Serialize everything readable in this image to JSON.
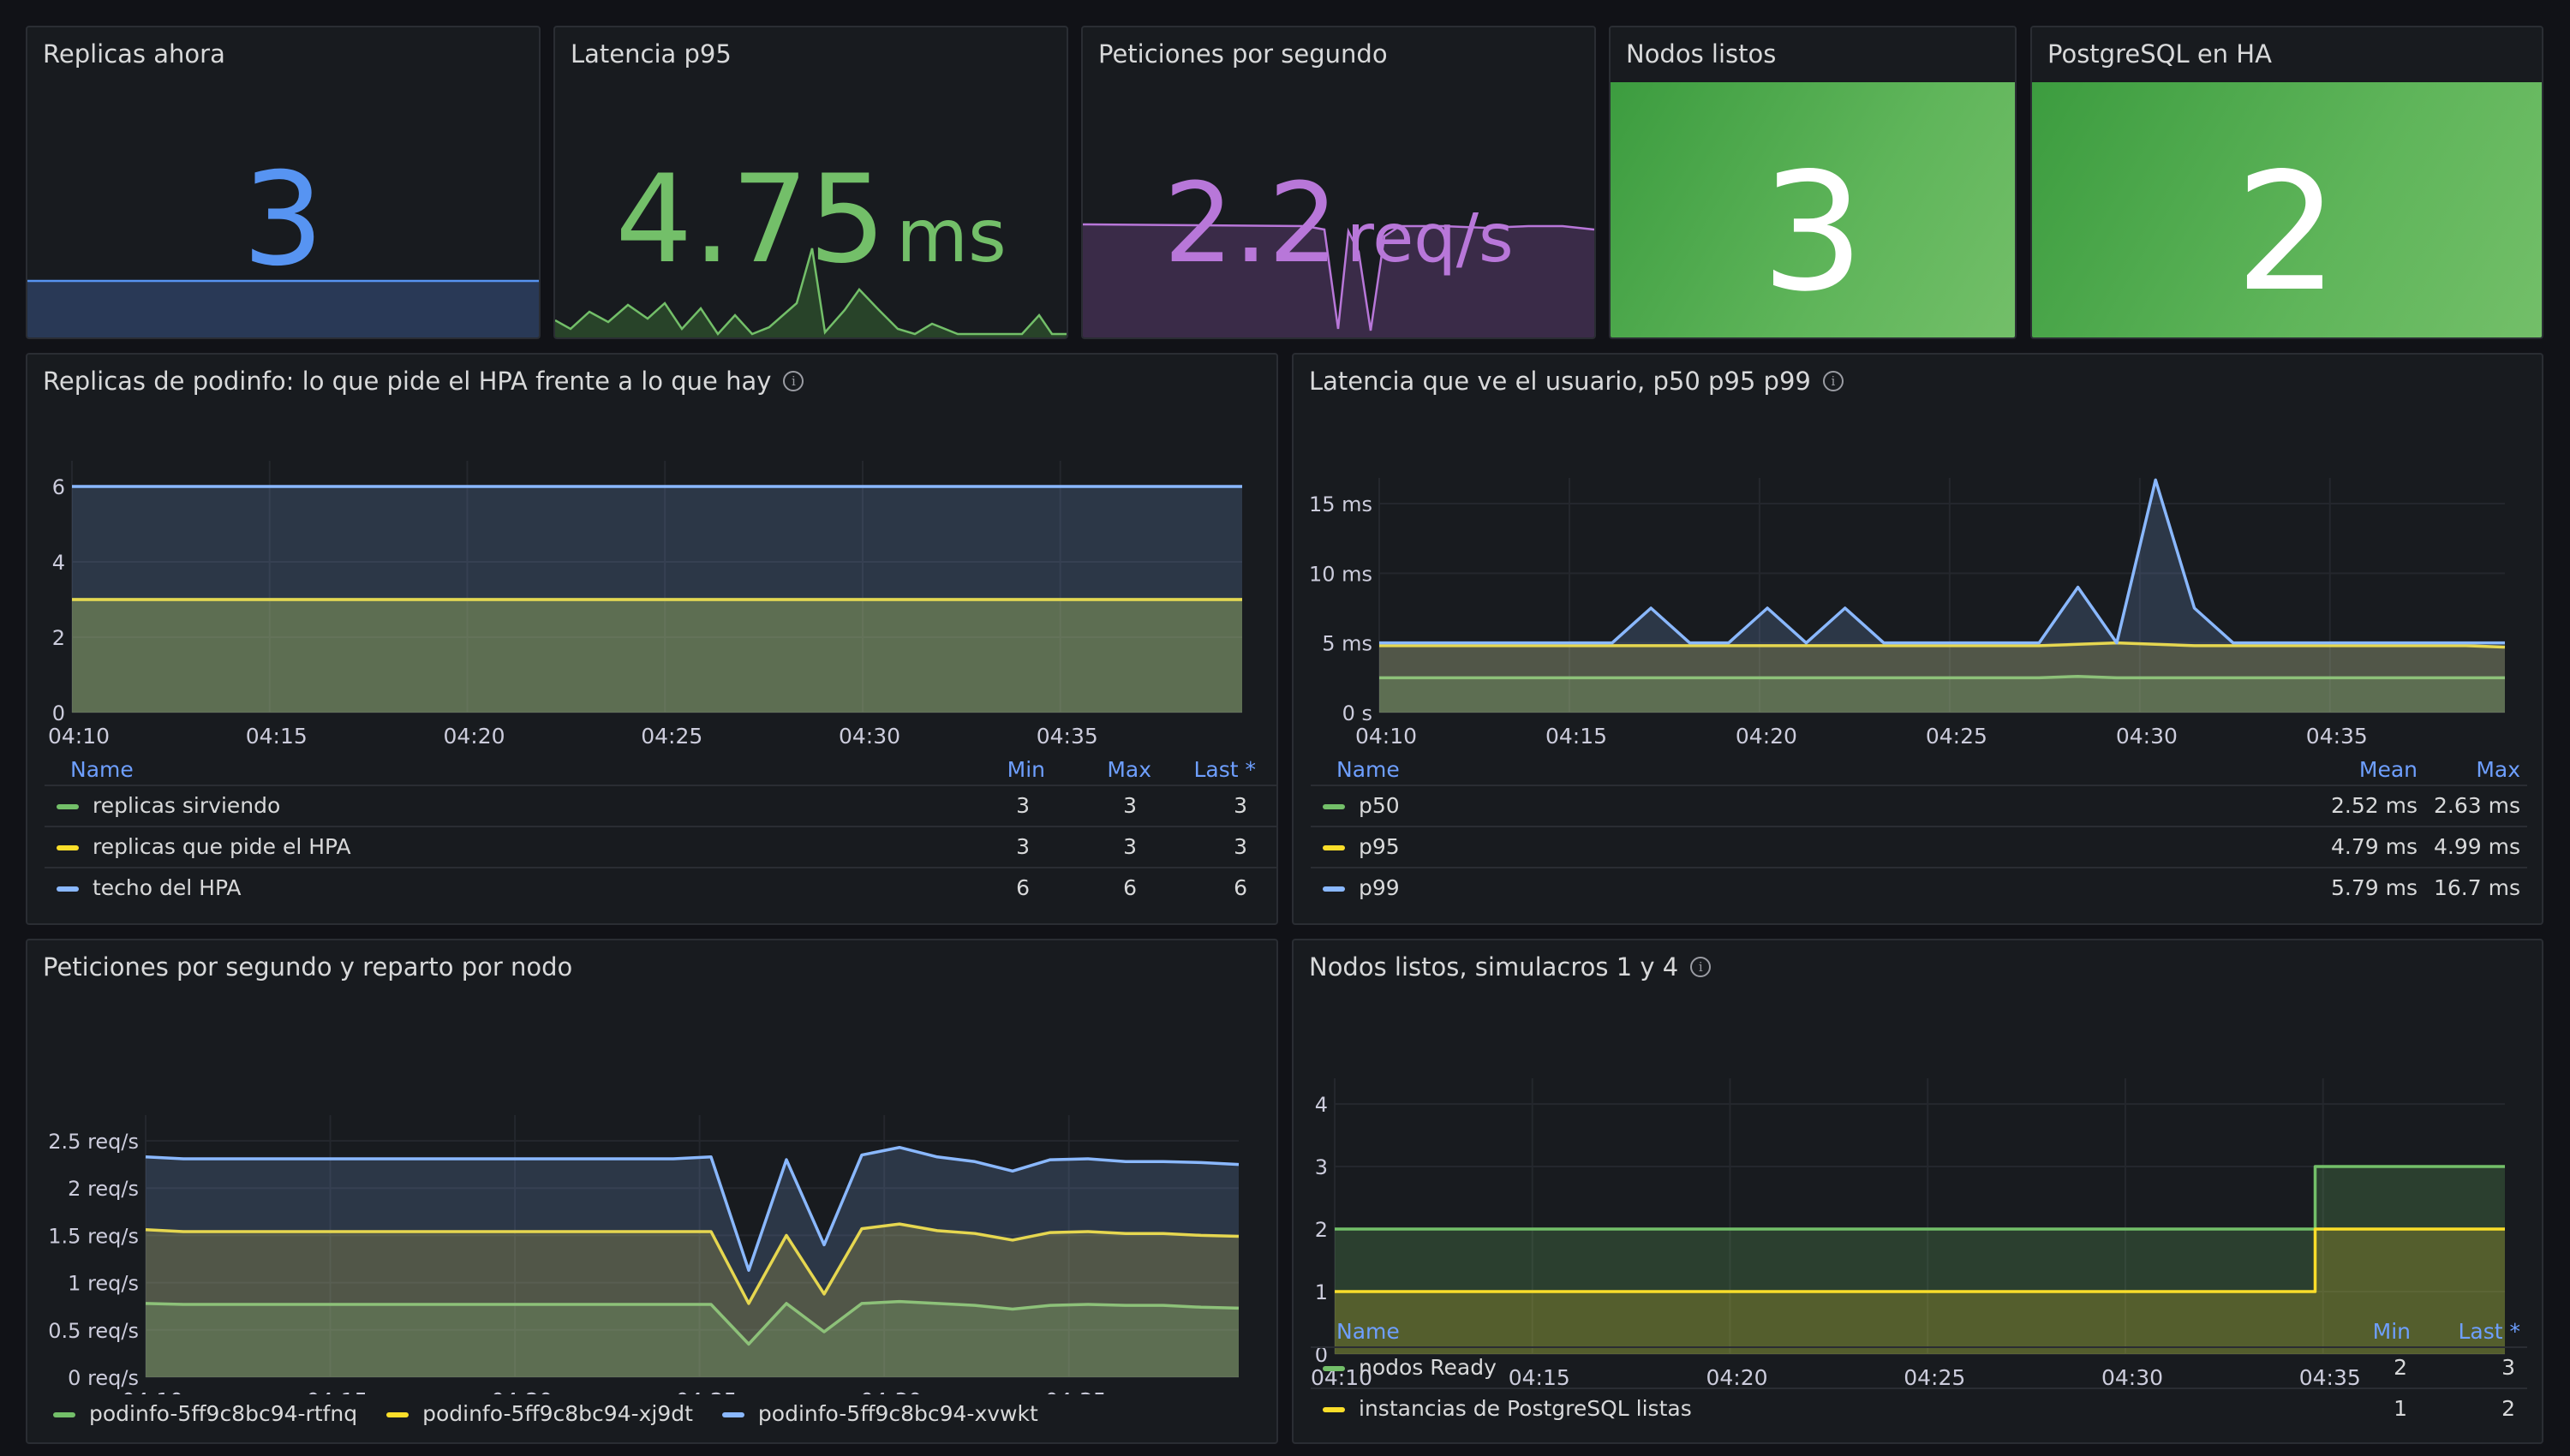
{
  "stats": {
    "replicas": {
      "title": "Replicas ahora",
      "value": "3",
      "color": "#5794f2"
    },
    "latency": {
      "title": "Latencia p95",
      "value": "4.75",
      "unit": "ms",
      "color": "#73bf69"
    },
    "rps": {
      "title": "Peticiones por segundo",
      "value": "2.2",
      "unit": "req/s",
      "color": "#b877d9"
    },
    "nodes": {
      "title": "Nodos listos",
      "value": "3"
    },
    "postgres": {
      "title": "PostgreSQL en HA",
      "value": "2"
    }
  },
  "time_ticks": [
    "04:10",
    "04:15",
    "04:20",
    "04:25",
    "04:30",
    "04:35"
  ],
  "replicas_panel": {
    "title": "Replicas de podinfo: lo que pide el HPA frente a lo que hay",
    "legend_headers": {
      "name": "Name",
      "min": "Min",
      "max": "Max",
      "last": "Last *"
    },
    "rows": [
      {
        "name": "replicas sirviendo",
        "min": "3",
        "max": "3",
        "last": "3",
        "color": "#73bf69"
      },
      {
        "name": "replicas que pide el HPA",
        "min": "3",
        "max": "3",
        "last": "3",
        "color": "#fade2a"
      },
      {
        "name": "techo del HPA",
        "min": "6",
        "max": "6",
        "last": "6",
        "color": "#8ab8ff"
      }
    ]
  },
  "latency_panel": {
    "title": "Latencia que ve el usuario, p50 p95 p99",
    "legend_headers": {
      "name": "Name",
      "mean": "Mean",
      "max": "Max"
    },
    "rows": [
      {
        "name": "p50",
        "mean": "2.52 ms",
        "max": "2.63 ms",
        "color": "#73bf69"
      },
      {
        "name": "p95",
        "mean": "4.79 ms",
        "max": "4.99 ms",
        "color": "#fade2a"
      },
      {
        "name": "p99",
        "mean": "5.79 ms",
        "max": "16.7 ms",
        "color": "#8ab8ff"
      }
    ]
  },
  "rps_panel": {
    "title": "Peticiones por segundo y reparto por nodo",
    "legend": [
      {
        "name": "podinfo-5ff9c8bc94-rtfnq",
        "color": "#73bf69"
      },
      {
        "name": "podinfo-5ff9c8bc94-xj9dt",
        "color": "#fade2a"
      },
      {
        "name": "podinfo-5ff9c8bc94-xvwkt",
        "color": "#8ab8ff"
      }
    ]
  },
  "nodes_panel": {
    "title": "Nodos listos, simulacros 1 y 4",
    "legend_headers": {
      "name": "Name",
      "min": "Min",
      "last": "Last *"
    },
    "rows": [
      {
        "name": "nodos Ready",
        "min": "2",
        "last": "3",
        "color": "#73bf69"
      },
      {
        "name": "instancias de PostgreSQL listas",
        "min": "1",
        "last": "2",
        "color": "#fade2a"
      }
    ]
  },
  "chart_data": [
    {
      "type": "area",
      "title": "Replicas de podinfo: lo que pide el HPA frente a lo que hay",
      "x": [
        "04:10",
        "04:39"
      ],
      "ylim": [
        0,
        6
      ],
      "yticks": [
        "0",
        "2",
        "4",
        "6"
      ],
      "series": [
        {
          "name": "replicas sirviendo",
          "values": [
            3,
            3
          ]
        },
        {
          "name": "replicas que pide el HPA",
          "values": [
            3,
            3
          ]
        },
        {
          "name": "techo del HPA",
          "values": [
            6,
            6
          ]
        }
      ]
    },
    {
      "type": "line",
      "title": "Latencia que ve el usuario, p50 p95 p99",
      "ylim": [
        0,
        18
      ],
      "yticks": [
        "0 s",
        "5 ms",
        "10 ms",
        "15 ms"
      ],
      "x": [
        "04:10",
        "04:11",
        "04:12",
        "04:13",
        "04:14",
        "04:15",
        "04:16",
        "04:17",
        "04:18",
        "04:19",
        "04:20",
        "04:21",
        "04:22",
        "04:23",
        "04:24",
        "04:25",
        "04:26",
        "04:27",
        "04:28",
        "04:29",
        "04:30",
        "04:31",
        "04:32",
        "04:33",
        "04:34",
        "04:35",
        "04:36",
        "04:37",
        "04:38",
        "04:39"
      ],
      "series": [
        {
          "name": "p50",
          "values": [
            2.5,
            2.5,
            2.5,
            2.5,
            2.5,
            2.5,
            2.5,
            2.5,
            2.5,
            2.5,
            2.5,
            2.5,
            2.5,
            2.5,
            2.5,
            2.5,
            2.5,
            2.5,
            2.6,
            2.5,
            2.5,
            2.5,
            2.5,
            2.5,
            2.5,
            2.5,
            2.5,
            2.5,
            2.5,
            2.5
          ]
        },
        {
          "name": "p95",
          "values": [
            4.8,
            4.8,
            4.8,
            4.8,
            4.8,
            4.8,
            4.8,
            4.8,
            4.8,
            4.8,
            4.8,
            4.8,
            4.8,
            4.8,
            4.8,
            4.8,
            4.8,
            4.8,
            4.9,
            5.0,
            4.9,
            4.8,
            4.8,
            4.8,
            4.8,
            4.8,
            4.8,
            4.8,
            4.8,
            4.7
          ]
        },
        {
          "name": "p99",
          "values": [
            5.0,
            5.0,
            5.0,
            5.0,
            5.0,
            5.0,
            5.0,
            7.5,
            5.0,
            5.0,
            7.5,
            5.0,
            7.5,
            5.0,
            5.0,
            5.0,
            5.0,
            5.0,
            9.0,
            5.0,
            16.7,
            7.5,
            5.0,
            5.0,
            5.0,
            5.0,
            5.0,
            5.0,
            5.0,
            5.0
          ]
        }
      ]
    },
    {
      "type": "area",
      "title": "Peticiones por segundo y reparto por nodo",
      "ylim": [
        0,
        2.75
      ],
      "yticks": [
        "0 req/s",
        "0.5 req/s",
        "1 req/s",
        "1.5 req/s",
        "2 req/s",
        "2.5 req/s"
      ],
      "x": [
        "04:10",
        "04:11",
        "04:12",
        "04:13",
        "04:14",
        "04:15",
        "04:16",
        "04:17",
        "04:18",
        "04:19",
        "04:20",
        "04:21",
        "04:22",
        "04:23",
        "04:24",
        "04:25",
        "04:26",
        "04:27",
        "04:28",
        "04:29",
        "04:30",
        "04:31",
        "04:32",
        "04:33",
        "04:34",
        "04:35",
        "04:36",
        "04:37",
        "04:38",
        "04:39"
      ],
      "series": [
        {
          "name": "podinfo-5ff9c8bc94-rtfnq",
          "values": [
            0.78,
            0.77,
            0.77,
            0.77,
            0.77,
            0.77,
            0.77,
            0.77,
            0.77,
            0.77,
            0.77,
            0.77,
            0.77,
            0.77,
            0.77,
            0.77,
            0.35,
            0.78,
            0.48,
            0.78,
            0.8,
            0.78,
            0.76,
            0.72,
            0.76,
            0.77,
            0.76,
            0.76,
            0.74,
            0.73
          ]
        },
        {
          "name": "podinfo-5ff9c8bc94-xj9dt",
          "values": [
            1.56,
            1.54,
            1.54,
            1.54,
            1.54,
            1.54,
            1.54,
            1.54,
            1.54,
            1.54,
            1.54,
            1.54,
            1.54,
            1.54,
            1.54,
            1.54,
            0.78,
            1.5,
            0.88,
            1.57,
            1.62,
            1.55,
            1.52,
            1.45,
            1.53,
            1.54,
            1.52,
            1.52,
            1.5,
            1.49
          ]
        },
        {
          "name": "podinfo-5ff9c8bc94-xvwkt",
          "values": [
            2.33,
            2.31,
            2.31,
            2.31,
            2.31,
            2.31,
            2.31,
            2.31,
            2.31,
            2.31,
            2.31,
            2.31,
            2.31,
            2.31,
            2.31,
            2.33,
            1.13,
            2.3,
            1.4,
            2.35,
            2.43,
            2.33,
            2.28,
            2.18,
            2.3,
            2.31,
            2.28,
            2.28,
            2.27,
            2.25
          ]
        }
      ]
    },
    {
      "type": "line",
      "title": "Nodos listos, simulacros 1 y 4",
      "ylim": [
        0,
        4
      ],
      "yticks": [
        "0",
        "1",
        "2",
        "3",
        "4"
      ],
      "x": [
        "04:10",
        "04:15",
        "04:20",
        "04:25",
        "04:30",
        "04:34",
        "04:35",
        "04:39"
      ],
      "series": [
        {
          "name": "nodos Ready",
          "values": [
            2,
            2,
            2,
            2,
            2,
            2,
            3,
            3
          ]
        },
        {
          "name": "instancias de PostgreSQL listas",
          "values": [
            1,
            1,
            1,
            1,
            1,
            1,
            2,
            2
          ]
        }
      ]
    }
  ]
}
